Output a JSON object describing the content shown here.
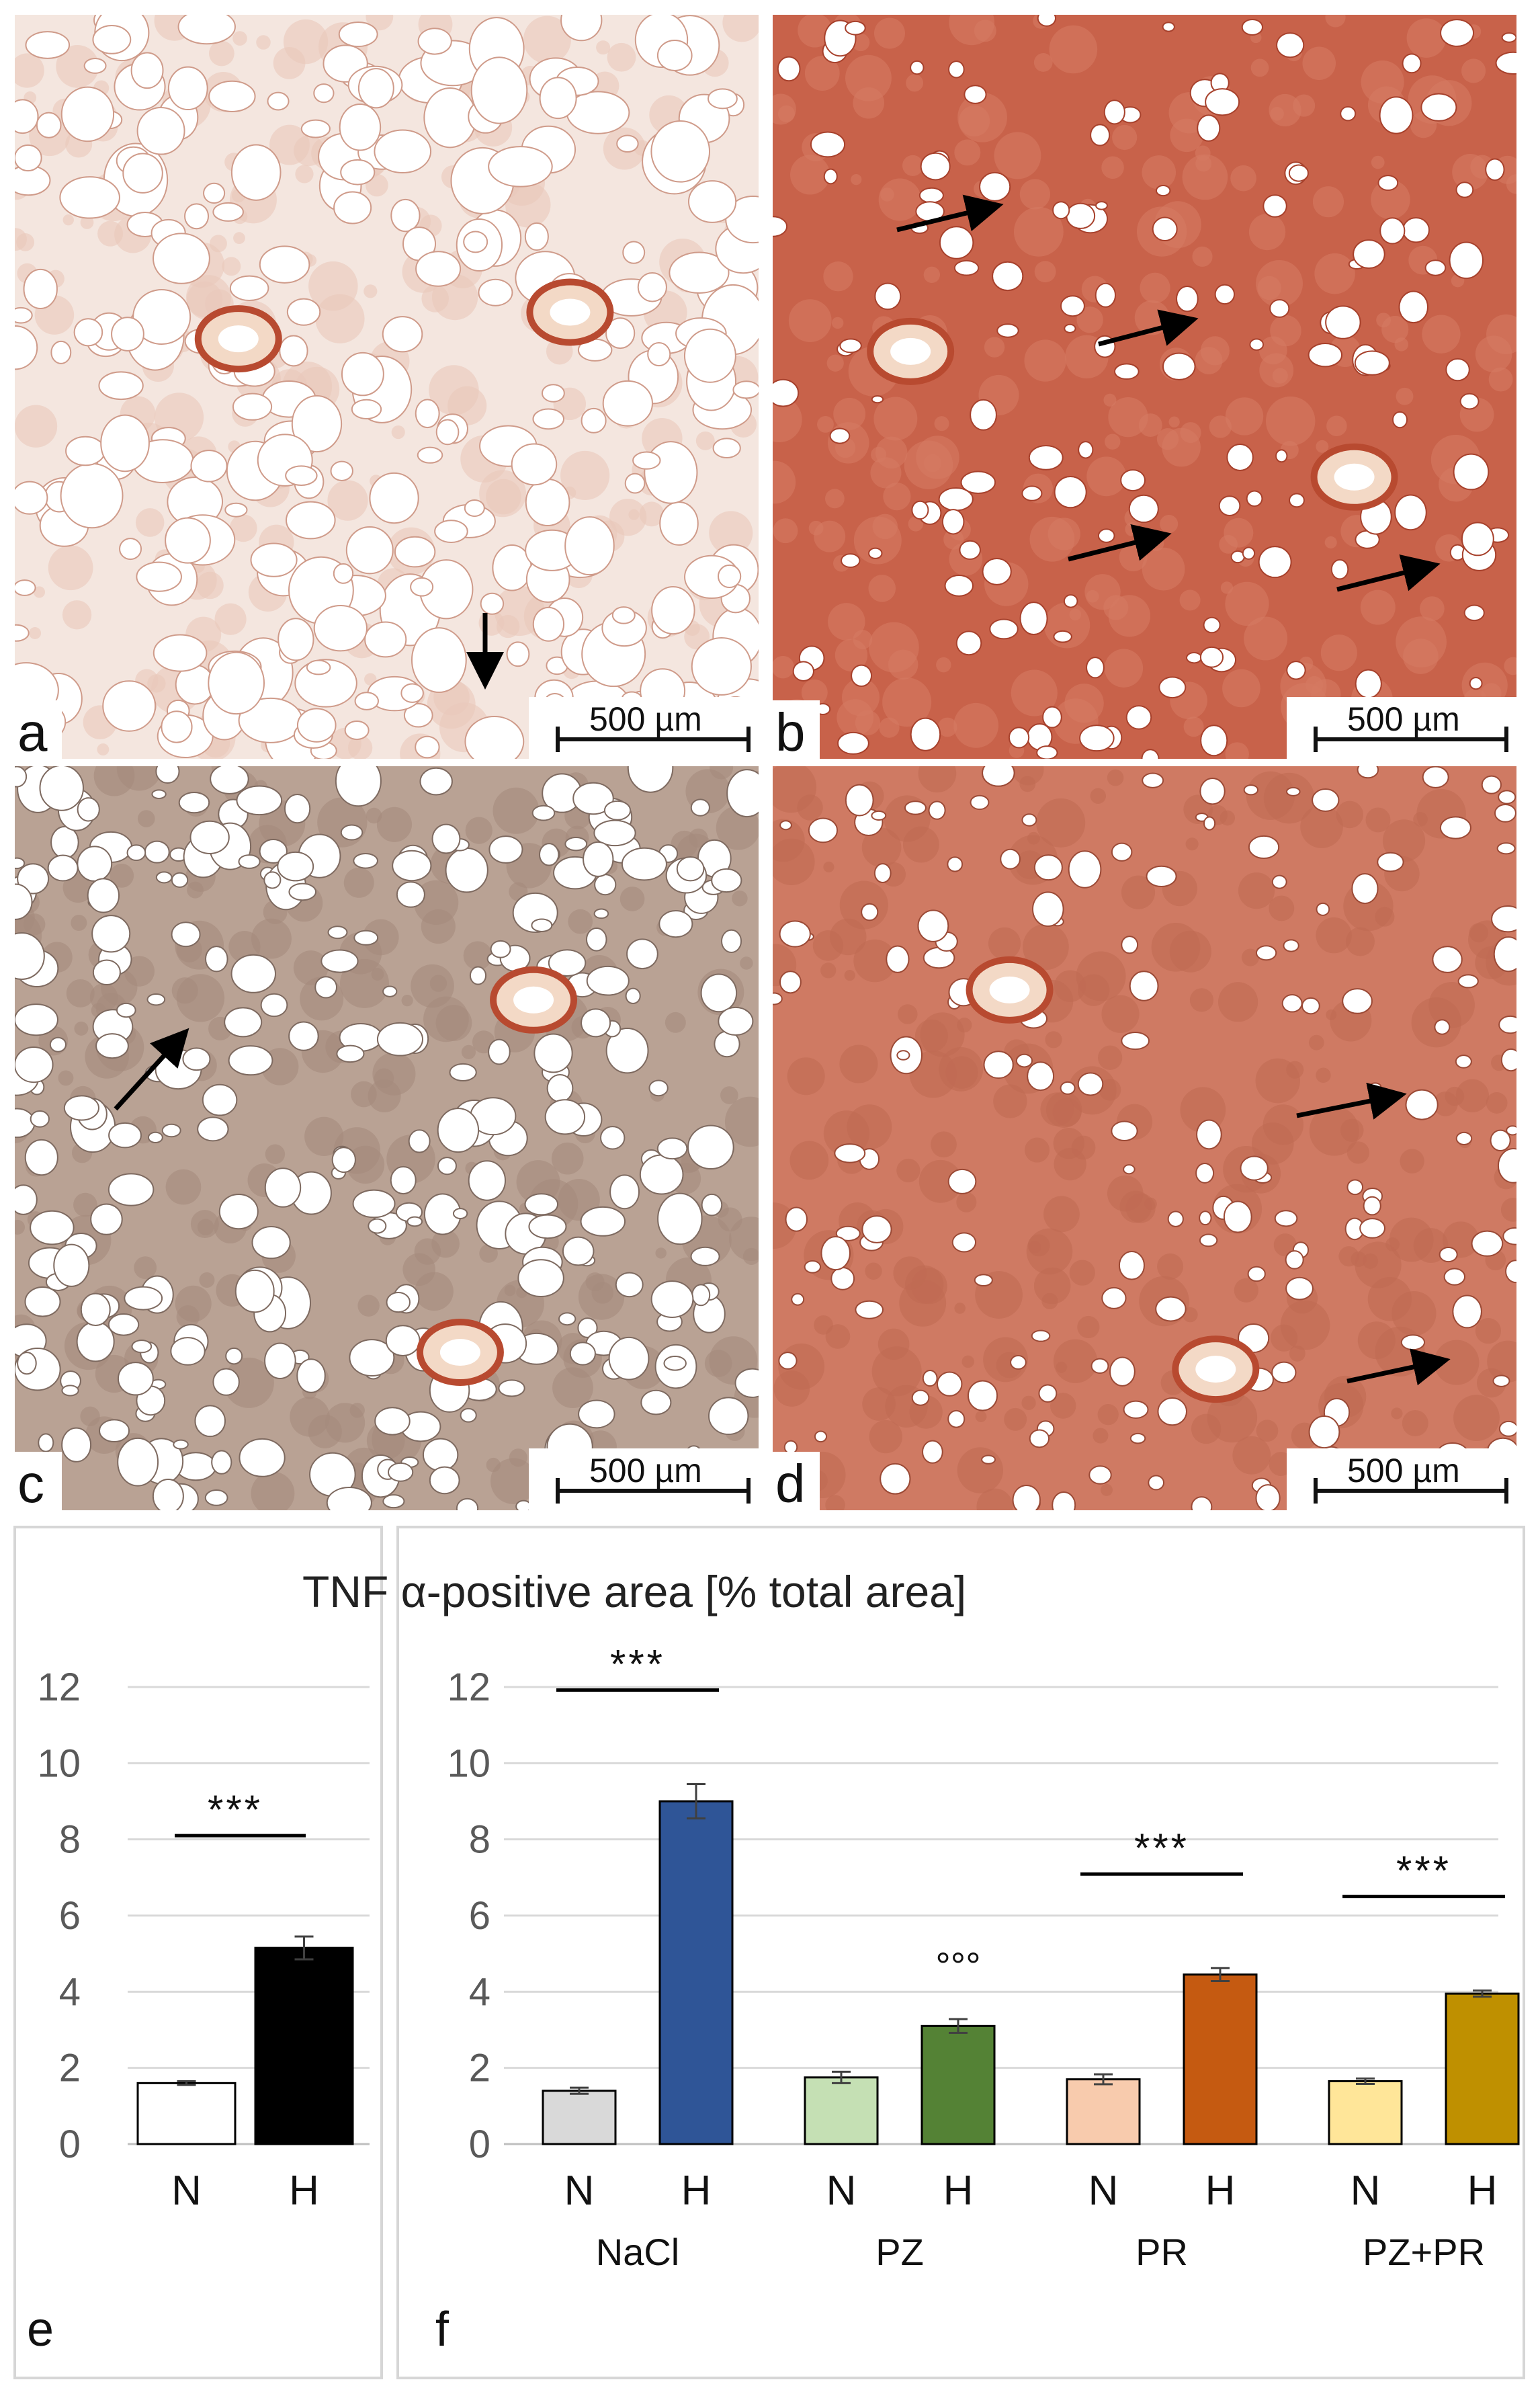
{
  "panels": [
    {
      "letter": "a",
      "scale_text": "500 µm",
      "stain": "light"
    },
    {
      "letter": "b",
      "scale_text": "500 µm",
      "stain": "dense-red"
    },
    {
      "letter": "c",
      "scale_text": "500 µm",
      "stain": "gray-brown"
    },
    {
      "letter": "d",
      "scale_text": "500 µm",
      "stain": "red-brown"
    }
  ],
  "chart_title": "TNF α-positive area [% total area]",
  "chart_data": [
    {
      "panel": "e",
      "type": "bar",
      "categories": [
        "N",
        "H"
      ],
      "values": [
        1.6,
        5.15
      ],
      "errors": [
        0.05,
        0.3
      ],
      "colors": [
        "#ffffff",
        "#000000"
      ],
      "ylim": [
        0,
        12
      ],
      "yticks": [
        0,
        2,
        4,
        6,
        8,
        10,
        12
      ],
      "grid": true,
      "significance": [
        {
          "label": "***"
        }
      ]
    },
    {
      "panel": "f",
      "type": "bar",
      "groups": [
        "NaCl",
        "PZ",
        "PR",
        "PZ+PR"
      ],
      "categories": [
        "N",
        "H"
      ],
      "values": [
        [
          1.4,
          9.0
        ],
        [
          1.75,
          3.1
        ],
        [
          1.7,
          4.45
        ],
        [
          1.65,
          3.95
        ]
      ],
      "errors": [
        [
          0.08,
          0.45
        ],
        [
          0.15,
          0.18
        ],
        [
          0.13,
          0.17
        ],
        [
          0.07,
          0.08
        ]
      ],
      "colors": [
        [
          "#d9d9d9",
          "#2f5597"
        ],
        [
          "#c5e0b4",
          "#548235"
        ],
        [
          "#f8cbad",
          "#c55a11"
        ],
        [
          "#ffe699",
          "#bf9000"
        ]
      ],
      "ylim": [
        0,
        12
      ],
      "yticks": [
        0,
        2,
        4,
        6,
        8,
        10,
        12
      ],
      "grid": true,
      "annotations": [
        "***",
        "°°°",
        "***",
        "***"
      ]
    }
  ]
}
